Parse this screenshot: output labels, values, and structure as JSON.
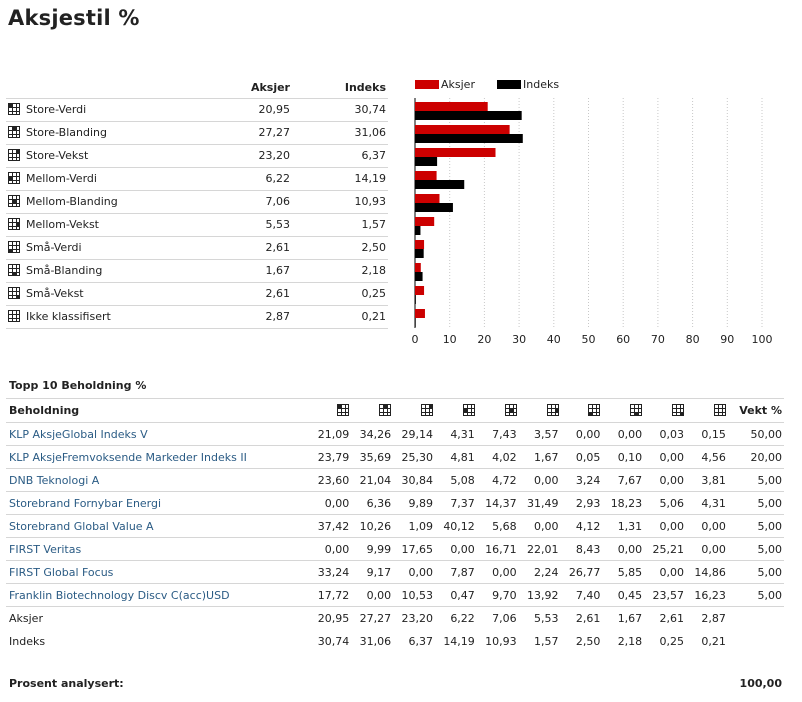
{
  "page": {
    "title": "Aksjestil %"
  },
  "style_table": {
    "col_aksjer": "Aksjer",
    "col_indeks": "Indeks",
    "rows": [
      {
        "name": "Store-Verdi",
        "icon": "style-box-large-value-icon",
        "aksjer": "20,95",
        "indeks": "30,74"
      },
      {
        "name": "Store-Blanding",
        "icon": "style-box-large-blend-icon",
        "aksjer": "27,27",
        "indeks": "31,06"
      },
      {
        "name": "Store-Vekst",
        "icon": "style-box-large-growth-icon",
        "aksjer": "23,20",
        "indeks": "6,37"
      },
      {
        "name": "Mellom-Verdi",
        "icon": "style-box-mid-value-icon",
        "aksjer": "6,22",
        "indeks": "14,19"
      },
      {
        "name": "Mellom-Blanding",
        "icon": "style-box-mid-blend-icon",
        "aksjer": "7,06",
        "indeks": "10,93"
      },
      {
        "name": "Mellom-Vekst",
        "icon": "style-box-mid-growth-icon",
        "aksjer": "5,53",
        "indeks": "1,57"
      },
      {
        "name": "Små-Verdi",
        "icon": "style-box-small-value-icon",
        "aksjer": "2,61",
        "indeks": "2,50"
      },
      {
        "name": "Små-Blanding",
        "icon": "style-box-small-blend-icon",
        "aksjer": "1,67",
        "indeks": "2,18"
      },
      {
        "name": "Små-Vekst",
        "icon": "style-box-small-growth-icon",
        "aksjer": "2,61",
        "indeks": "0,25"
      },
      {
        "name": "Ikke klassifisert",
        "icon": "style-box-empty-icon",
        "aksjer": "2,87",
        "indeks": "0,21"
      }
    ]
  },
  "chart_data": {
    "type": "bar",
    "orientation": "horizontal",
    "categories": [
      "Store-Verdi",
      "Store-Blanding",
      "Store-Vekst",
      "Mellom-Verdi",
      "Mellom-Blanding",
      "Mellom-Vekst",
      "Små-Verdi",
      "Små-Blanding",
      "Små-Vekst",
      "Ikke klassifisert"
    ],
    "series": [
      {
        "name": "Aksjer",
        "color": "#cc0000",
        "values": [
          20.95,
          27.27,
          23.2,
          6.22,
          7.06,
          5.53,
          2.61,
          1.67,
          2.61,
          2.87
        ]
      },
      {
        "name": "Indeks",
        "color": "#000000",
        "values": [
          30.74,
          31.06,
          6.37,
          14.19,
          10.93,
          1.57,
          2.5,
          2.18,
          0.25,
          0.21
        ]
      }
    ],
    "xlim": [
      0,
      100
    ],
    "xticks": [
      "0",
      "10",
      "20",
      "30",
      "40",
      "50",
      "60",
      "70",
      "80",
      "90",
      "100"
    ],
    "grid": true,
    "legend_position": "top-left"
  },
  "holdings": {
    "section_title": "Topp 10 Beholdning %",
    "col_name": "Beholdning",
    "col_weight": "Vekt %",
    "style_columns": [
      "style-box-large-value-icon",
      "style-box-large-blend-icon",
      "style-box-large-growth-icon",
      "style-box-mid-value-icon",
      "style-box-mid-blend-icon",
      "style-box-mid-growth-icon",
      "style-box-small-value-icon",
      "style-box-small-blend-icon",
      "style-box-small-growth-icon",
      "style-box-empty-icon"
    ],
    "rows": [
      {
        "name": "KLP AksjeGlobal Indeks V",
        "values": [
          "21,09",
          "34,26",
          "29,14",
          "4,31",
          "7,43",
          "3,57",
          "0,00",
          "0,00",
          "0,03",
          "0,15"
        ],
        "weight": "50,00"
      },
      {
        "name": "KLP AksjeFremvoksende Markeder Indeks II",
        "values": [
          "23,79",
          "35,69",
          "25,30",
          "4,81",
          "4,02",
          "1,67",
          "0,05",
          "0,10",
          "0,00",
          "4,56"
        ],
        "weight": "20,00"
      },
      {
        "name": "DNB Teknologi A",
        "values": [
          "23,60",
          "21,04",
          "30,84",
          "5,08",
          "4,72",
          "0,00",
          "3,24",
          "7,67",
          "0,00",
          "3,81"
        ],
        "weight": "5,00"
      },
      {
        "name": "Storebrand Fornybar Energi",
        "values": [
          "0,00",
          "6,36",
          "9,89",
          "7,37",
          "14,37",
          "31,49",
          "2,93",
          "18,23",
          "5,06",
          "4,31"
        ],
        "weight": "5,00"
      },
      {
        "name": "Storebrand Global Value A",
        "values": [
          "37,42",
          "10,26",
          "1,09",
          "40,12",
          "5,68",
          "0,00",
          "4,12",
          "1,31",
          "0,00",
          "0,00"
        ],
        "weight": "5,00"
      },
      {
        "name": "FIRST Veritas",
        "values": [
          "0,00",
          "9,99",
          "17,65",
          "0,00",
          "16,71",
          "22,01",
          "8,43",
          "0,00",
          "25,21",
          "0,00"
        ],
        "weight": "5,00"
      },
      {
        "name": "FIRST Global Focus",
        "values": [
          "33,24",
          "9,17",
          "0,00",
          "7,87",
          "0,00",
          "2,24",
          "26,77",
          "5,85",
          "0,00",
          "14,86"
        ],
        "weight": "5,00"
      },
      {
        "name": "Franklin Biotechnology Discv C(acc)USD",
        "values": [
          "17,72",
          "0,00",
          "10,53",
          "0,47",
          "9,70",
          "13,92",
          "7,40",
          "0,45",
          "23,57",
          "16,23"
        ],
        "weight": "5,00"
      }
    ],
    "summary_rows": [
      {
        "name": "Aksjer",
        "values": [
          "20,95",
          "27,27",
          "23,20",
          "6,22",
          "7,06",
          "5,53",
          "2,61",
          "1,67",
          "2,61",
          "2,87"
        ]
      },
      {
        "name": "Indeks",
        "values": [
          "30,74",
          "31,06",
          "6,37",
          "14,19",
          "10,93",
          "1,57",
          "2,50",
          "2,18",
          "0,25",
          "0,21"
        ]
      }
    ],
    "footer_label": "Prosent analysert:",
    "footer_value": "100,00"
  }
}
